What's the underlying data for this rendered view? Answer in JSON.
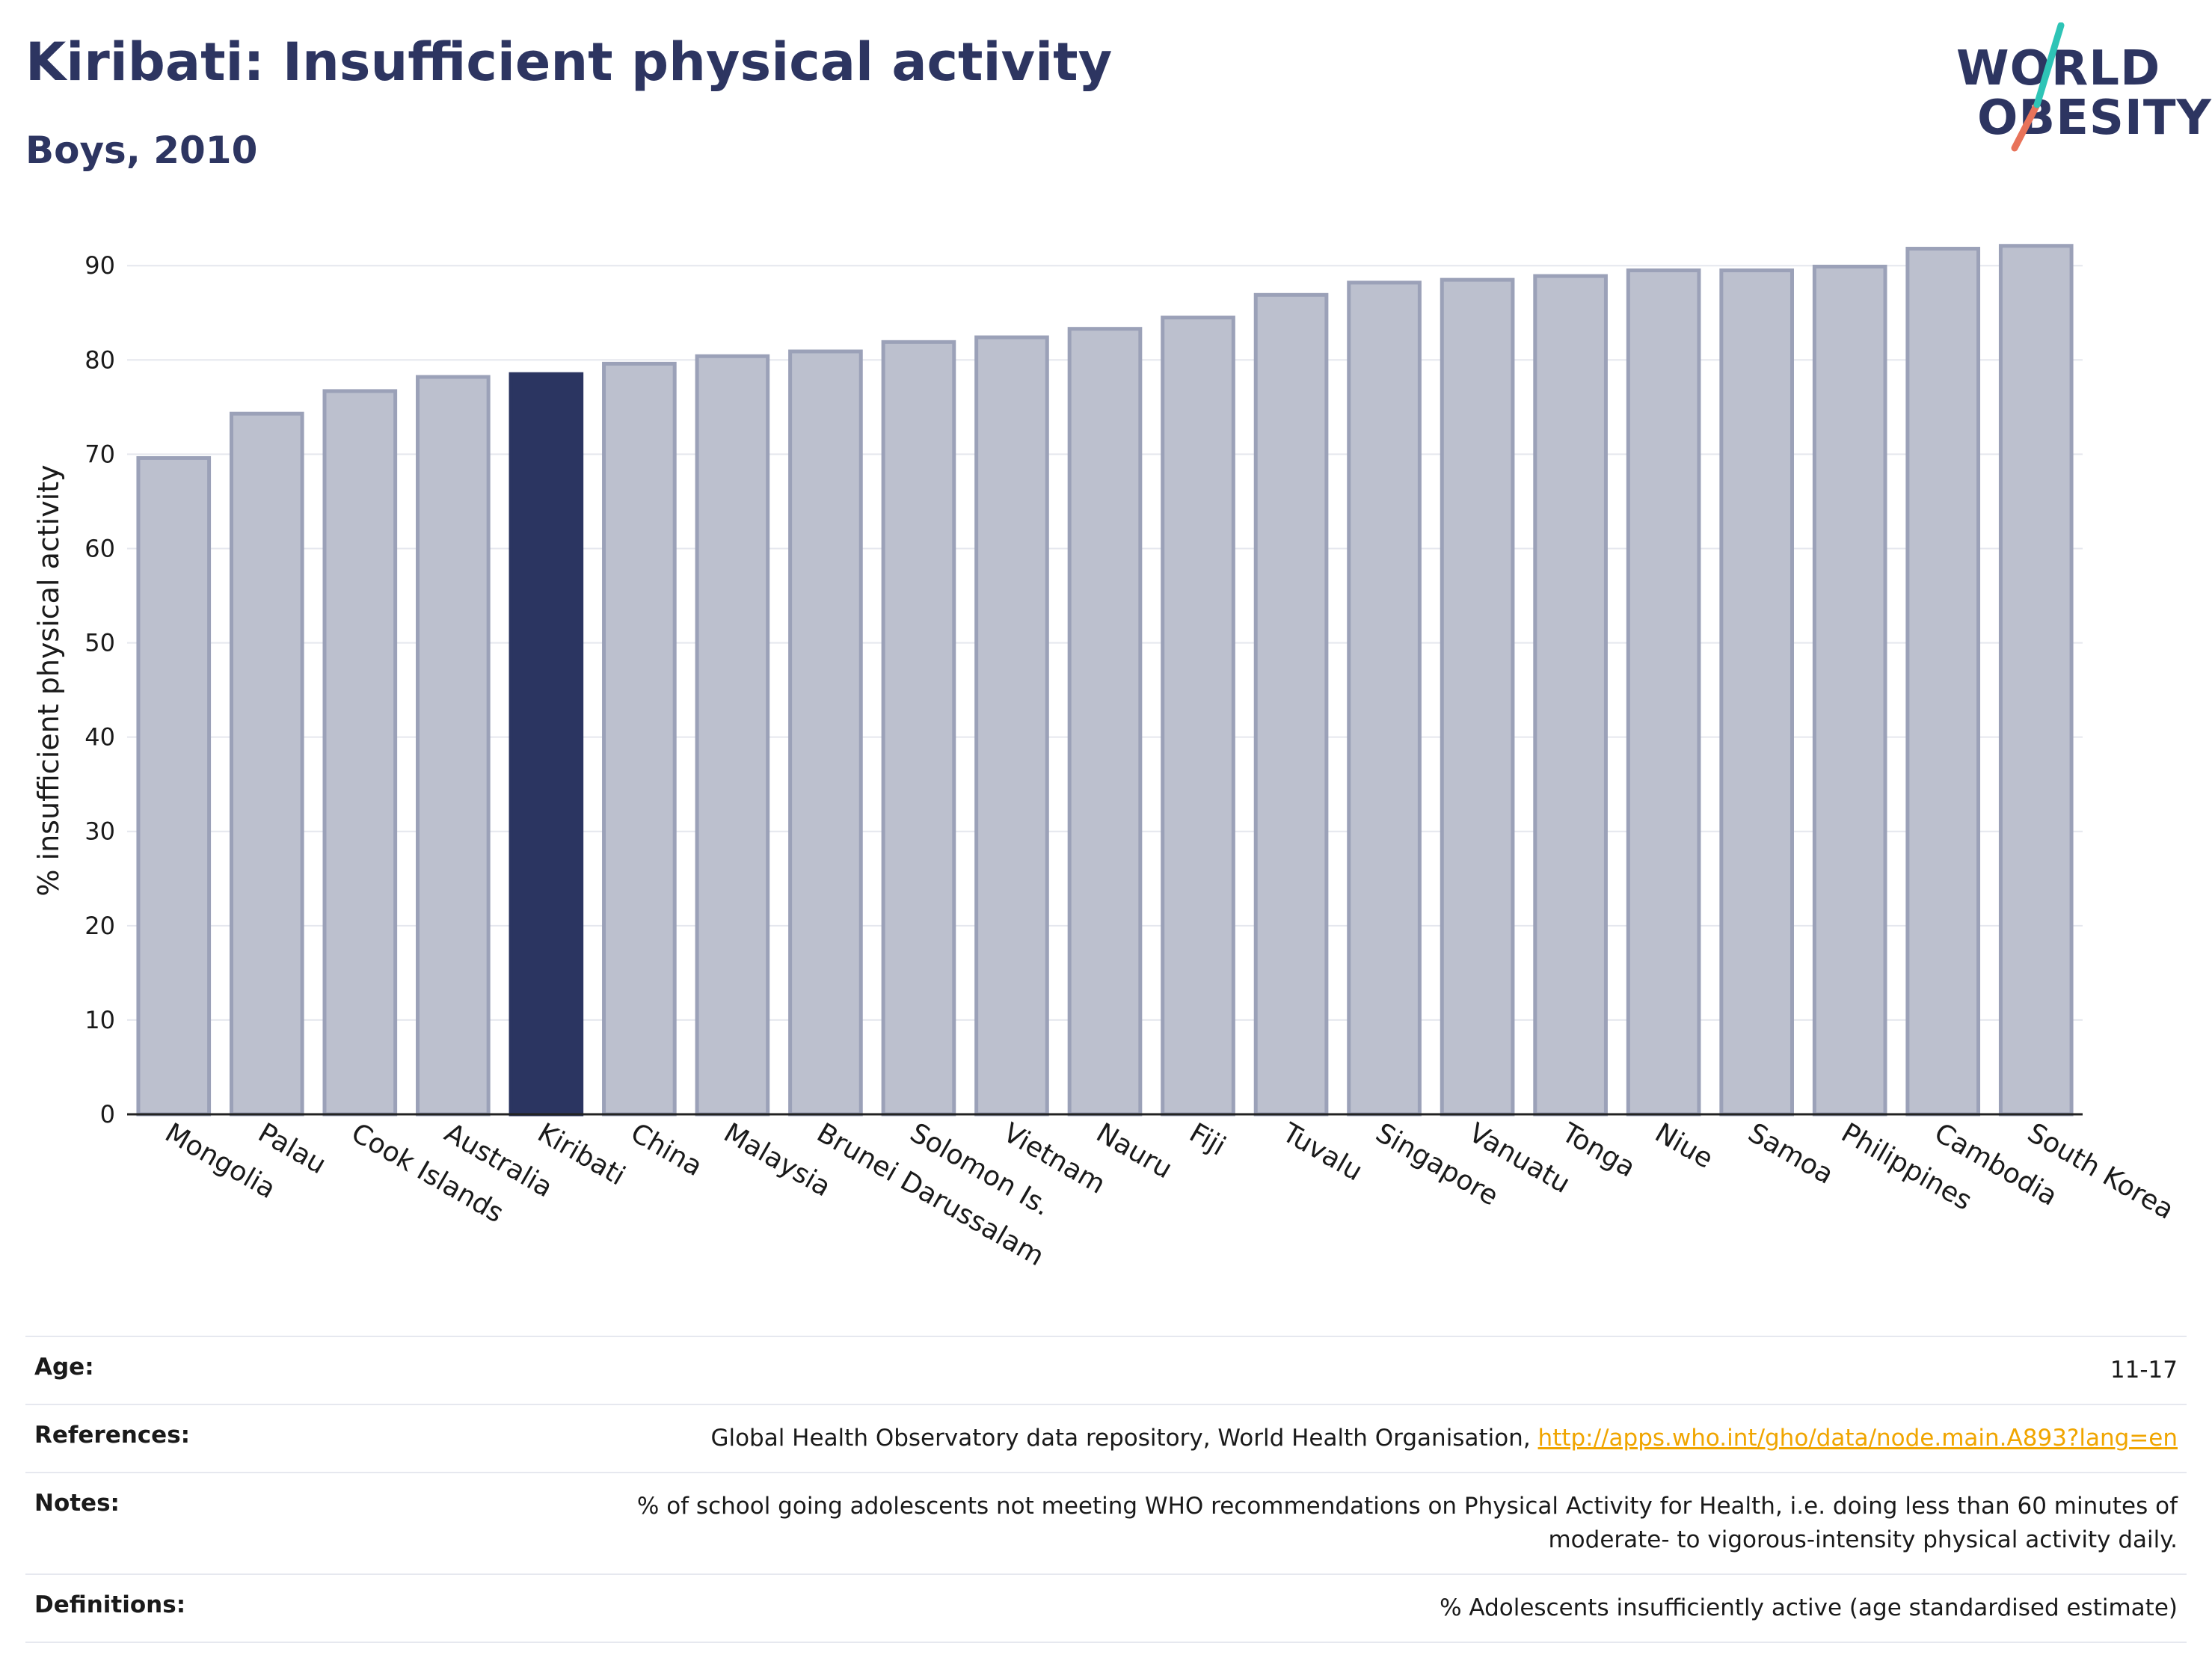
{
  "header": {
    "title": "Kiribati: Insufficient physical activity",
    "subtitle": "Boys, 2010"
  },
  "logo": {
    "line1": "WORLD",
    "line2": "OBESITY",
    "colors": {
      "text": "#2d3561",
      "slash_teal": "#2ec4b6",
      "slash_coral": "#e8735a"
    }
  },
  "colors": {
    "bar": "#bcc0ce",
    "bar_stroke": "#9ba1b8",
    "highlight": "#2b3561",
    "grid": "#e5e7ee"
  },
  "chart_data": {
    "type": "bar",
    "title": "Kiribati: Insufficient physical activity",
    "subtitle": "Boys, 2010",
    "xlabel": "",
    "ylabel": "% insufficient physical activity",
    "ylim": [
      0,
      92
    ],
    "yticks": [
      0,
      10,
      20,
      30,
      40,
      50,
      60,
      70,
      80,
      90
    ],
    "grid": true,
    "highlight": "Kiribati",
    "categories": [
      "Mongolia",
      "Palau",
      "Cook Islands",
      "Australia",
      "Kiribati",
      "China",
      "Malaysia",
      "Brunei Darussalam",
      "Solomon Is.",
      "Vietnam",
      "Nauru",
      "Fiji",
      "Tuvalu",
      "Singapore",
      "Vanuatu",
      "Tonga",
      "Niue",
      "Samoa",
      "Philippines",
      "Cambodia",
      "South Korea"
    ],
    "values": [
      69.6,
      74.3,
      76.7,
      78.2,
      78.5,
      79.6,
      80.4,
      80.9,
      81.9,
      82.4,
      83.3,
      84.5,
      86.9,
      88.2,
      88.5,
      88.9,
      89.5,
      89.5,
      89.9,
      91.8,
      92.1
    ]
  },
  "meta": {
    "age_label": "Age:",
    "age_value": "11-17",
    "references_label": "References:",
    "references_text": "Global Health Observatory data repository, World Health Organisation,",
    "references_link": "http://apps.who.int/gho/data/node.main.A893?lang=en",
    "notes_label": "Notes:",
    "notes_line1": "% of school going adolescents not meeting WHO recommendations on Physical Activity for Health, i.e. doing less than 60 minutes of",
    "notes_line2": "moderate- to vigorous-intensity physical activity daily.",
    "definitions_label": "Definitions:",
    "definitions_value": "% Adolescents insufficiently active (age standardised estimate)"
  }
}
